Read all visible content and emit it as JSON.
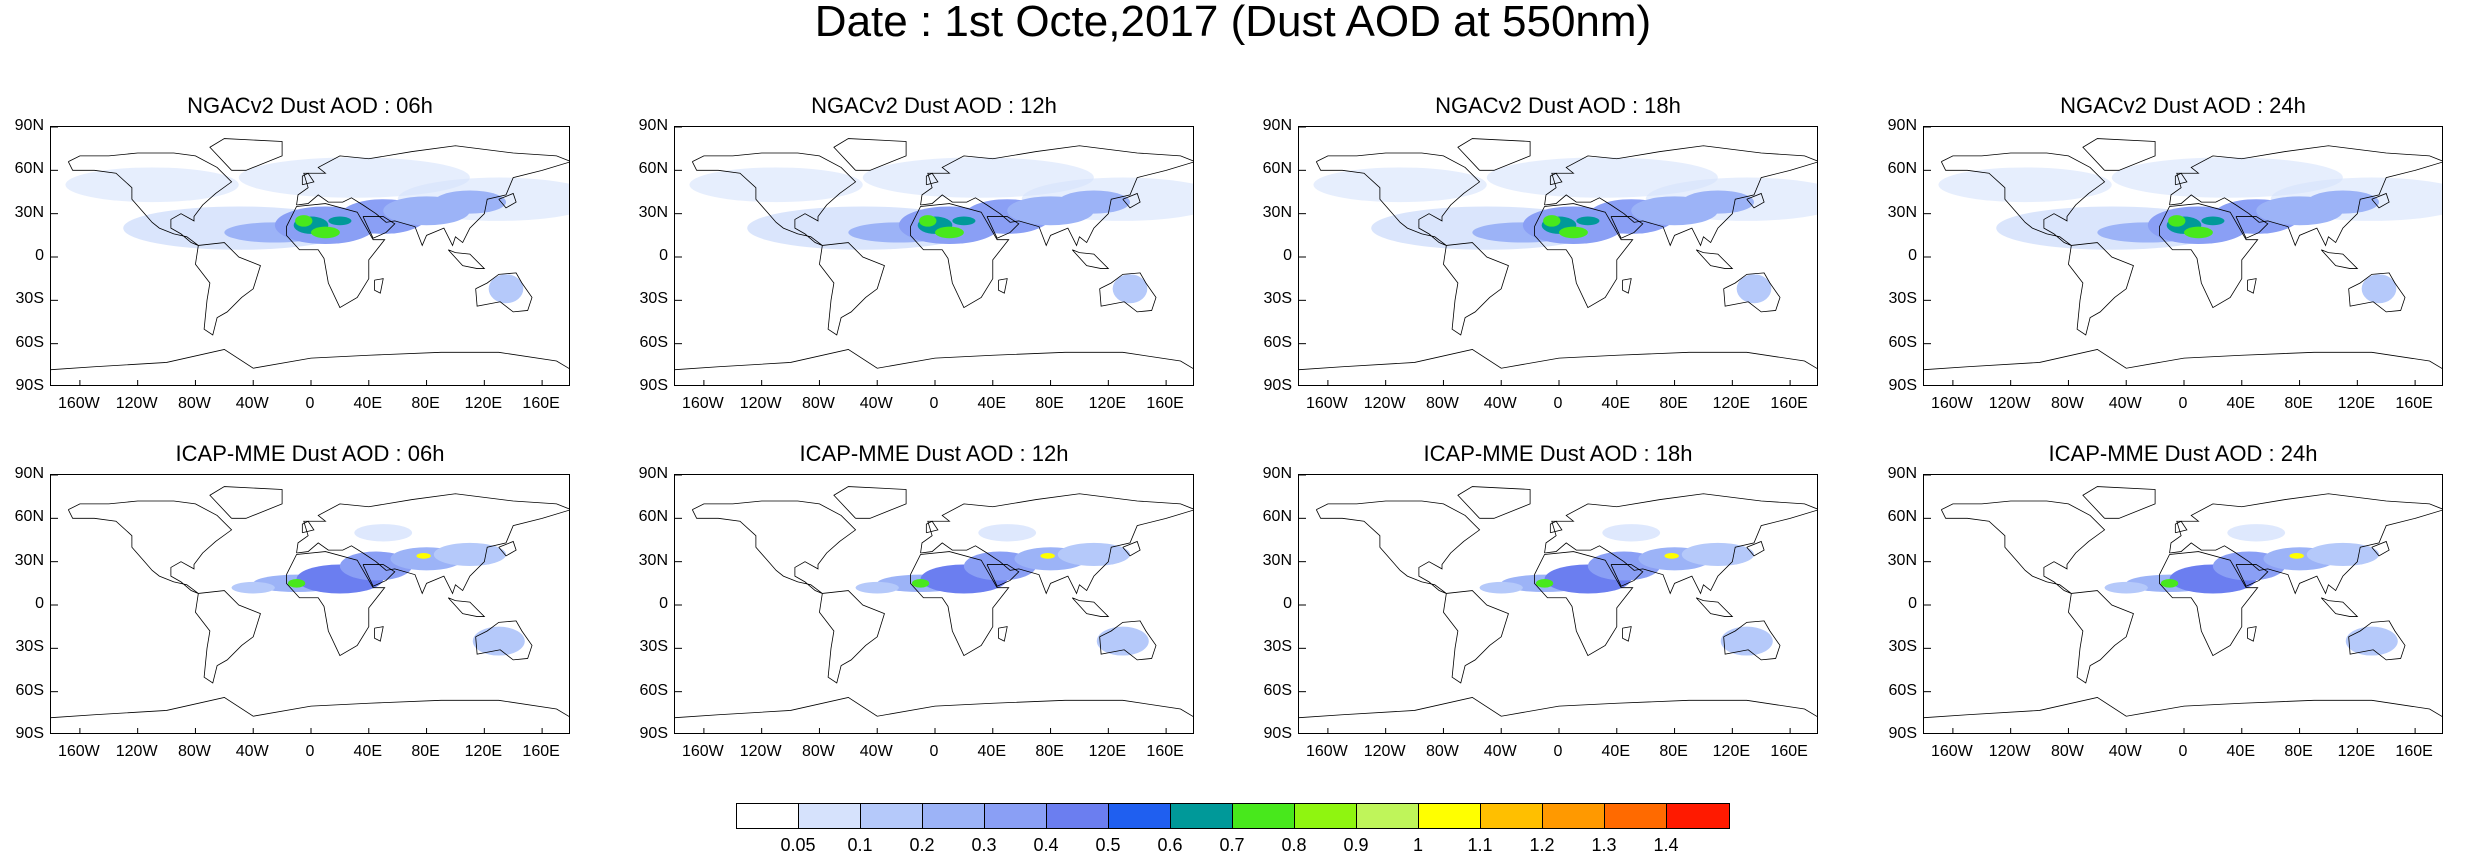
{
  "title": "Date : 1st Octe,2017 (Dust AOD at 550nm)",
  "lat_labels": [
    "90N",
    "60N",
    "30N",
    "0",
    "30S",
    "60S",
    "90S"
  ],
  "lon_labels": [
    "160W",
    "120W",
    "80W",
    "40W",
    "0",
    "40E",
    "80E",
    "120E",
    "160E"
  ],
  "panels": [
    {
      "title": "NGACv2 Dust AOD : 06h",
      "model": "NGACv2"
    },
    {
      "title": "NGACv2 Dust AOD : 12h",
      "model": "NGACv2"
    },
    {
      "title": "NGACv2 Dust AOD : 18h",
      "model": "NGACv2"
    },
    {
      "title": "NGACv2 Dust AOD : 24h",
      "model": "NGACv2"
    },
    {
      "title": "ICAP-MME Dust AOD : 06h",
      "model": "ICAP-MME"
    },
    {
      "title": "ICAP-MME Dust AOD : 12h",
      "model": "ICAP-MME"
    },
    {
      "title": "ICAP-MME Dust AOD : 18h",
      "model": "ICAP-MME"
    },
    {
      "title": "ICAP-MME Dust AOD : 24h",
      "model": "ICAP-MME"
    }
  ],
  "colorbar": {
    "labels": [
      "0.05",
      "0.1",
      "0.2",
      "0.3",
      "0.4",
      "0.5",
      "0.6",
      "0.7",
      "0.8",
      "0.9",
      "1",
      "1.1",
      "1.2",
      "1.3",
      "1.4"
    ],
    "colors": [
      "#ffffff",
      "#d6e2fc",
      "#b5c9fa",
      "#9cb3f7",
      "#8a9ff5",
      "#6b7ef0",
      "#1f5ff0",
      "#009999",
      "#48e81c",
      "#8ff510",
      "#bff55a",
      "#ffff00",
      "#ffbf00",
      "#ff9900",
      "#ff6a00",
      "#ff1a00"
    ]
  }
}
